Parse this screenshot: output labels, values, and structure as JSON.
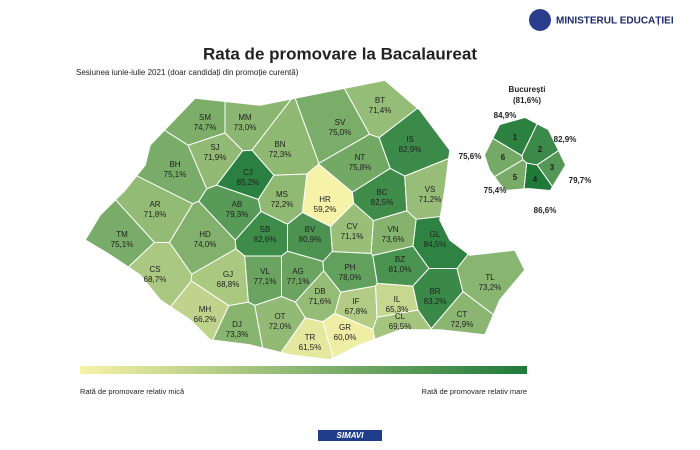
{
  "header": {
    "ministry": "MINISTERUL EDUCAȚIEI",
    "title": "Rata de promovare la Bacalaureat",
    "subtitle": "Sesiunea iunie-iulie 2021 (doar candidați din promoție curentă)"
  },
  "counties": [
    {
      "code": "SM",
      "rate": "74,7%",
      "value": 74.7
    },
    {
      "code": "MM",
      "rate": "73,0%",
      "value": 73.0
    },
    {
      "code": "BT",
      "rate": "71,4%",
      "value": 71.4
    },
    {
      "code": "SV",
      "rate": "75,0%",
      "value": 75.0
    },
    {
      "code": "SJ",
      "rate": "71,9%",
      "value": 71.9
    },
    {
      "code": "BN",
      "rate": "72,3%",
      "value": 72.3
    },
    {
      "code": "IS",
      "rate": "82,9%",
      "value": 82.9
    },
    {
      "code": "BH",
      "rate": "75,1%",
      "value": 75.1
    },
    {
      "code": "CJ",
      "rate": "85,2%",
      "value": 85.2
    },
    {
      "code": "NT",
      "rate": "75,8%",
      "value": 75.8
    },
    {
      "code": "HR",
      "rate": "59,2%",
      "value": 59.2
    },
    {
      "code": "MS",
      "rate": "72,2%",
      "value": 72.2
    },
    {
      "code": "BC",
      "rate": "82,5%",
      "value": 82.5
    },
    {
      "code": "VS",
      "rate": "71,2%",
      "value": 71.2
    },
    {
      "code": "AR",
      "rate": "71,8%",
      "value": 71.8
    },
    {
      "code": "AB",
      "rate": "79,3%",
      "value": 79.3
    },
    {
      "code": "CV",
      "rate": "71,1%",
      "value": 71.1
    },
    {
      "code": "SB",
      "rate": "82,6%",
      "value": 82.6
    },
    {
      "code": "BV",
      "rate": "80,9%",
      "value": 80.9
    },
    {
      "code": "VN",
      "rate": "73,6%",
      "value": 73.6
    },
    {
      "code": "GL",
      "rate": "84,5%",
      "value": 84.5
    },
    {
      "code": "TM",
      "rate": "75,1%",
      "value": 75.1
    },
    {
      "code": "HD",
      "rate": "74,0%",
      "value": 74.0
    },
    {
      "code": "CS",
      "rate": "68,7%",
      "value": 68.7
    },
    {
      "code": "GJ",
      "rate": "68,8%",
      "value": 68.8
    },
    {
      "code": "VL",
      "rate": "77,1%",
      "value": 77.1
    },
    {
      "code": "AG",
      "rate": "77,1%",
      "value": 77.1
    },
    {
      "code": "PH",
      "rate": "78,0%",
      "value": 78.0
    },
    {
      "code": "BZ",
      "rate": "81,0%",
      "value": 81.0
    },
    {
      "code": "BR",
      "rate": "83,2%",
      "value": 83.2
    },
    {
      "code": "TL",
      "rate": "73,2%",
      "value": 73.2
    },
    {
      "code": "MH",
      "rate": "66,2%",
      "value": 66.2
    },
    {
      "code": "DB",
      "rate": "71,6%",
      "value": 71.6
    },
    {
      "code": "IF",
      "rate": "67,8%",
      "value": 67.8
    },
    {
      "code": "IL",
      "rate": "65,3%",
      "value": 65.3
    },
    {
      "code": "OT",
      "rate": "72,0%",
      "value": 72.0
    },
    {
      "code": "DJ",
      "rate": "73,3%",
      "value": 73.3
    },
    {
      "code": "TR",
      "rate": "61,5%",
      "value": 61.5
    },
    {
      "code": "GR",
      "rate": "60,0%",
      "value": 60.0
    },
    {
      "code": "CL",
      "rate": "69,5%",
      "value": 69.5
    },
    {
      "code": "CT",
      "rate": "72,9%",
      "value": 72.9
    }
  ],
  "bucharest": {
    "name": "București",
    "rate": "(81,6%)",
    "sectors": [
      {
        "code": "1",
        "rate": "84,9%",
        "value": 84.9
      },
      {
        "code": "2",
        "rate": "82,9%",
        "value": 82.9
      },
      {
        "code": "3",
        "rate": "79,7%",
        "value": 79.7
      },
      {
        "code": "4",
        "rate": "86,6%",
        "value": 86.6
      },
      {
        "code": "5",
        "rate": "75,4%",
        "value": 75.4
      },
      {
        "code": "6",
        "rate": "75,6%",
        "value": 75.6
      }
    ]
  },
  "legend": {
    "low": "Rată de promovare relativ mică",
    "high": "Rată de promovare relativ mare"
  },
  "footer": {
    "logo": "SIMAVI"
  }
}
